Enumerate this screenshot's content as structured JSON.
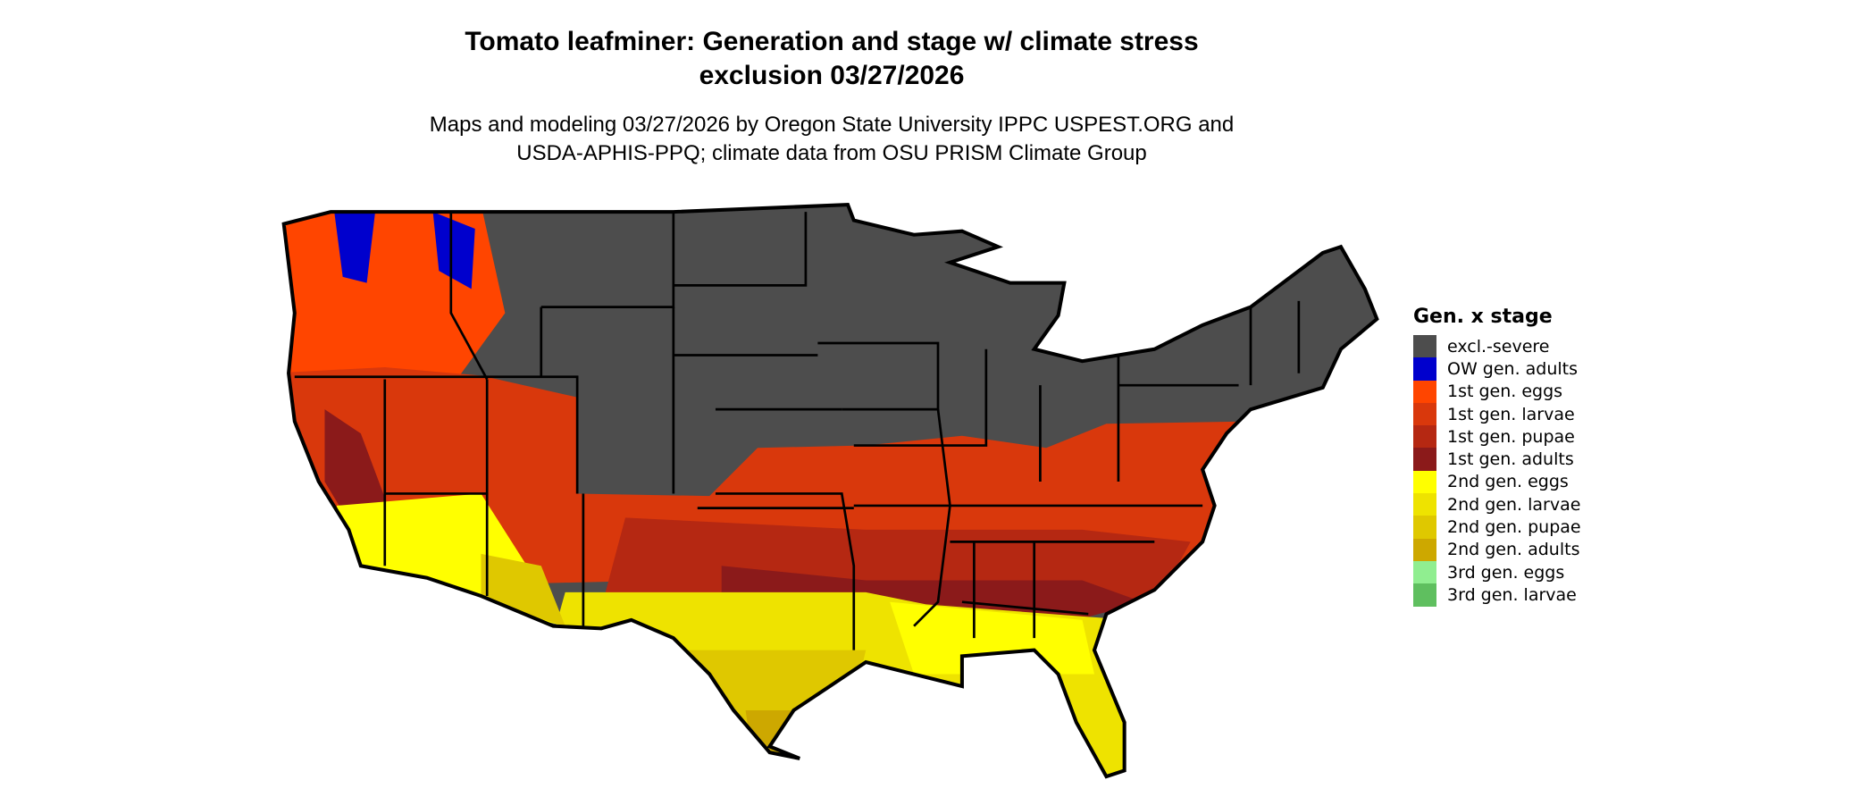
{
  "title_line1": "Tomato leafminer: Generation and stage w/ climate stress",
  "title_line2": "exclusion 03/27/2026",
  "subtitle_line1": "Maps and modeling 03/27/2026 by Oregon State University IPPC USPEST.ORG and",
  "subtitle_line2": "USDA-APHIS-PPQ; climate data from OSU PRISM Climate Group",
  "legend": {
    "title": "Gen. x stage",
    "items": [
      {
        "label": "excl.-severe",
        "color": "#4d4d4d"
      },
      {
        "label": "OW gen. adults",
        "color": "#0000cd"
      },
      {
        "label": "1st gen. eggs",
        "color": "#ff4500"
      },
      {
        "label": "1st gen. larvae",
        "color": "#d9380c"
      },
      {
        "label": "1st gen. pupae",
        "color": "#b52812"
      },
      {
        "label": "1st gen. adults",
        "color": "#8b1a1a"
      },
      {
        "label": "2nd gen. eggs",
        "color": "#ffff00"
      },
      {
        "label": "2nd gen. larvae",
        "color": "#eee300"
      },
      {
        "label": "2nd gen. pupae",
        "color": "#dfc800"
      },
      {
        "label": "2nd gen. adults",
        "color": "#cda800"
      },
      {
        "label": "3rd gen. eggs",
        "color": "#90ee90"
      },
      {
        "label": "3rd gen. larvae",
        "color": "#5fbf5f"
      }
    ]
  }
}
